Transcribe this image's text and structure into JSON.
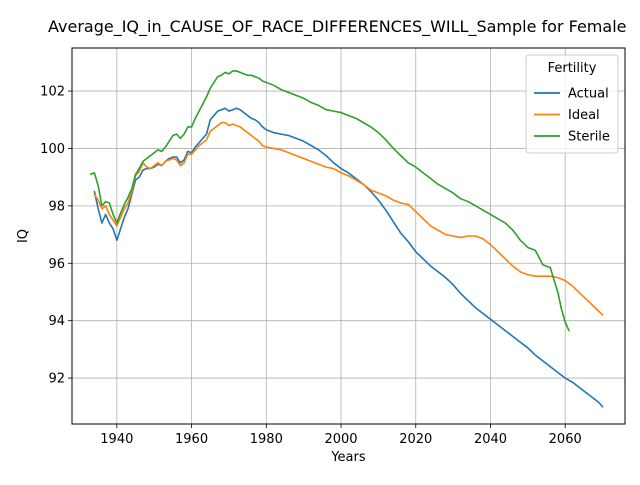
{
  "chart_data": {
    "type": "line",
    "title": "Average_IQ_in_CAUSE_OF_RACE_DIFFERENCES_WILL_Sample for Female",
    "xlabel": "Years",
    "ylabel": "IQ",
    "xlim": [
      1928,
      2076
    ],
    "ylim": [
      90.4,
      103.5
    ],
    "xticks": [
      1940,
      1960,
      1980,
      2000,
      2020,
      2040,
      2060
    ],
    "yticks": [
      92,
      94,
      96,
      98,
      100,
      102
    ],
    "grid": true,
    "legend": {
      "title": "Fertility",
      "placement": "top-right"
    },
    "series": [
      {
        "name": "Actual",
        "color": "#1f77b4",
        "points": [
          [
            1934,
            98.5
          ],
          [
            1935,
            97.9
          ],
          [
            1936,
            97.4
          ],
          [
            1937,
            97.7
          ],
          [
            1938,
            97.4
          ],
          [
            1939,
            97.2
          ],
          [
            1940,
            96.8
          ],
          [
            1941,
            97.2
          ],
          [
            1942,
            97.6
          ],
          [
            1943,
            97.9
          ],
          [
            1944,
            98.4
          ],
          [
            1945,
            98.9
          ],
          [
            1946,
            99.0
          ],
          [
            1947,
            99.25
          ],
          [
            1948,
            99.3
          ],
          [
            1949,
            99.3
          ],
          [
            1950,
            99.35
          ],
          [
            1951,
            99.45
          ],
          [
            1952,
            99.4
          ],
          [
            1953,
            99.55
          ],
          [
            1954,
            99.65
          ],
          [
            1955,
            99.7
          ],
          [
            1956,
            99.7
          ],
          [
            1957,
            99.5
          ],
          [
            1958,
            99.6
          ],
          [
            1959,
            99.9
          ],
          [
            1960,
            99.85
          ],
          [
            1961,
            100.05
          ],
          [
            1962,
            100.2
          ],
          [
            1963,
            100.35
          ],
          [
            1964,
            100.5
          ],
          [
            1965,
            101.0
          ],
          [
            1966,
            101.15
          ],
          [
            1967,
            101.3
          ],
          [
            1968,
            101.35
          ],
          [
            1969,
            101.4
          ],
          [
            1970,
            101.3
          ],
          [
            1971,
            101.35
          ],
          [
            1972,
            101.4
          ],
          [
            1973,
            101.35
          ],
          [
            1974,
            101.25
          ],
          [
            1975,
            101.15
          ],
          [
            1976,
            101.05
          ],
          [
            1977,
            101.0
          ],
          [
            1978,
            100.9
          ],
          [
            1979,
            100.75
          ],
          [
            1980,
            100.65
          ],
          [
            1982,
            100.55
          ],
          [
            1984,
            100.5
          ],
          [
            1986,
            100.45
          ],
          [
            1988,
            100.35
          ],
          [
            1990,
            100.25
          ],
          [
            1992,
            100.1
          ],
          [
            1994,
            99.95
          ],
          [
            1996,
            99.75
          ],
          [
            1998,
            99.5
          ],
          [
            2000,
            99.3
          ],
          [
            2002,
            99.15
          ],
          [
            2004,
            98.95
          ],
          [
            2006,
            98.75
          ],
          [
            2008,
            98.5
          ],
          [
            2010,
            98.2
          ],
          [
            2012,
            97.85
          ],
          [
            2014,
            97.45
          ],
          [
            2016,
            97.05
          ],
          [
            2018,
            96.75
          ],
          [
            2020,
            96.4
          ],
          [
            2022,
            96.15
          ],
          [
            2024,
            95.9
          ],
          [
            2026,
            95.7
          ],
          [
            2028,
            95.5
          ],
          [
            2030,
            95.25
          ],
          [
            2032,
            94.95
          ],
          [
            2034,
            94.7
          ],
          [
            2036,
            94.45
          ],
          [
            2038,
            94.25
          ],
          [
            2040,
            94.05
          ],
          [
            2042,
            93.85
          ],
          [
            2044,
            93.65
          ],
          [
            2046,
            93.45
          ],
          [
            2048,
            93.25
          ],
          [
            2050,
            93.05
          ],
          [
            2052,
            92.8
          ],
          [
            2054,
            92.6
          ],
          [
            2056,
            92.4
          ],
          [
            2058,
            92.2
          ],
          [
            2060,
            92.0
          ],
          [
            2062,
            91.85
          ],
          [
            2064,
            91.65
          ],
          [
            2066,
            91.45
          ],
          [
            2068,
            91.25
          ],
          [
            2069,
            91.15
          ],
          [
            2070,
            91.0
          ]
        ]
      },
      {
        "name": "Ideal",
        "color": "#ff7f0e",
        "points": [
          [
            1934,
            98.4
          ],
          [
            1935,
            98.2
          ],
          [
            1936,
            97.9
          ],
          [
            1937,
            98.0
          ],
          [
            1938,
            97.7
          ],
          [
            1939,
            97.5
          ],
          [
            1940,
            97.3
          ],
          [
            1941,
            97.6
          ],
          [
            1942,
            97.9
          ],
          [
            1943,
            98.1
          ],
          [
            1944,
            98.5
          ],
          [
            1945,
            99.05
          ],
          [
            1946,
            99.2
          ],
          [
            1947,
            99.5
          ],
          [
            1948,
            99.35
          ],
          [
            1949,
            99.3
          ],
          [
            1950,
            99.4
          ],
          [
            1951,
            99.5
          ],
          [
            1952,
            99.4
          ],
          [
            1953,
            99.55
          ],
          [
            1954,
            99.6
          ],
          [
            1955,
            99.65
          ],
          [
            1956,
            99.6
          ],
          [
            1957,
            99.4
          ],
          [
            1958,
            99.5
          ],
          [
            1959,
            99.8
          ],
          [
            1960,
            99.8
          ],
          [
            1961,
            99.95
          ],
          [
            1962,
            100.1
          ],
          [
            1963,
            100.2
          ],
          [
            1964,
            100.3
          ],
          [
            1965,
            100.6
          ],
          [
            1966,
            100.7
          ],
          [
            1967,
            100.8
          ],
          [
            1968,
            100.9
          ],
          [
            1969,
            100.9
          ],
          [
            1970,
            100.8
          ],
          [
            1971,
            100.85
          ],
          [
            1972,
            100.8
          ],
          [
            1973,
            100.75
          ],
          [
            1974,
            100.65
          ],
          [
            1975,
            100.55
          ],
          [
            1976,
            100.45
          ],
          [
            1977,
            100.35
          ],
          [
            1978,
            100.25
          ],
          [
            1979,
            100.1
          ],
          [
            1980,
            100.05
          ],
          [
            1982,
            100.0
          ],
          [
            1984,
            99.95
          ],
          [
            1986,
            99.85
          ],
          [
            1988,
            99.75
          ],
          [
            1990,
            99.65
          ],
          [
            1992,
            99.55
          ],
          [
            1994,
            99.45
          ],
          [
            1996,
            99.35
          ],
          [
            1998,
            99.3
          ],
          [
            2000,
            99.15
          ],
          [
            2002,
            99.05
          ],
          [
            2004,
            98.9
          ],
          [
            2006,
            98.75
          ],
          [
            2008,
            98.55
          ],
          [
            2010,
            98.45
          ],
          [
            2012,
            98.35
          ],
          [
            2014,
            98.2
          ],
          [
            2016,
            98.1
          ],
          [
            2018,
            98.05
          ],
          [
            2020,
            97.8
          ],
          [
            2022,
            97.55
          ],
          [
            2024,
            97.3
          ],
          [
            2026,
            97.15
          ],
          [
            2028,
            97.0
          ],
          [
            2030,
            96.95
          ],
          [
            2032,
            96.9
          ],
          [
            2034,
            96.95
          ],
          [
            2036,
            96.95
          ],
          [
            2038,
            96.85
          ],
          [
            2040,
            96.65
          ],
          [
            2042,
            96.4
          ],
          [
            2044,
            96.15
          ],
          [
            2046,
            95.9
          ],
          [
            2048,
            95.7
          ],
          [
            2050,
            95.6
          ],
          [
            2052,
            95.55
          ],
          [
            2054,
            95.55
          ],
          [
            2056,
            95.55
          ],
          [
            2058,
            95.5
          ],
          [
            2060,
            95.4
          ],
          [
            2062,
            95.2
          ],
          [
            2064,
            94.95
          ],
          [
            2066,
            94.7
          ],
          [
            2068,
            94.45
          ],
          [
            2070,
            94.2
          ]
        ]
      },
      {
        "name": "Sterile",
        "color": "#2ca02c",
        "points": [
          [
            1933,
            99.1
          ],
          [
            1934,
            99.15
          ],
          [
            1935,
            98.7
          ],
          [
            1936,
            98.0
          ],
          [
            1937,
            98.15
          ],
          [
            1938,
            98.1
          ],
          [
            1939,
            97.7
          ],
          [
            1940,
            97.4
          ],
          [
            1941,
            97.75
          ],
          [
            1942,
            98.05
          ],
          [
            1943,
            98.3
          ],
          [
            1944,
            98.6
          ],
          [
            1945,
            99.1
          ],
          [
            1946,
            99.3
          ],
          [
            1947,
            99.55
          ],
          [
            1948,
            99.65
          ],
          [
            1949,
            99.75
          ],
          [
            1950,
            99.85
          ],
          [
            1951,
            99.95
          ],
          [
            1952,
            99.9
          ],
          [
            1953,
            100.05
          ],
          [
            1954,
            100.25
          ],
          [
            1955,
            100.45
          ],
          [
            1956,
            100.5
          ],
          [
            1957,
            100.35
          ],
          [
            1958,
            100.5
          ],
          [
            1959,
            100.75
          ],
          [
            1960,
            100.75
          ],
          [
            1961,
            101.05
          ],
          [
            1962,
            101.3
          ],
          [
            1963,
            101.55
          ],
          [
            1964,
            101.8
          ],
          [
            1965,
            102.1
          ],
          [
            1966,
            102.3
          ],
          [
            1967,
            102.5
          ],
          [
            1968,
            102.55
          ],
          [
            1969,
            102.65
          ],
          [
            1970,
            102.6
          ],
          [
            1971,
            102.7
          ],
          [
            1972,
            102.7
          ],
          [
            1973,
            102.65
          ],
          [
            1974,
            102.6
          ],
          [
            1975,
            102.55
          ],
          [
            1976,
            102.55
          ],
          [
            1977,
            102.5
          ],
          [
            1978,
            102.45
          ],
          [
            1979,
            102.35
          ],
          [
            1980,
            102.3
          ],
          [
            1982,
            102.2
          ],
          [
            1984,
            102.05
          ],
          [
            1986,
            101.95
          ],
          [
            1988,
            101.85
          ],
          [
            1990,
            101.75
          ],
          [
            1992,
            101.6
          ],
          [
            1994,
            101.5
          ],
          [
            1996,
            101.35
          ],
          [
            1998,
            101.3
          ],
          [
            2000,
            101.25
          ],
          [
            2002,
            101.15
          ],
          [
            2004,
            101.05
          ],
          [
            2006,
            100.9
          ],
          [
            2008,
            100.75
          ],
          [
            2010,
            100.55
          ],
          [
            2012,
            100.3
          ],
          [
            2014,
            100.0
          ],
          [
            2016,
            99.75
          ],
          [
            2018,
            99.5
          ],
          [
            2020,
            99.35
          ],
          [
            2022,
            99.15
          ],
          [
            2024,
            98.95
          ],
          [
            2026,
            98.75
          ],
          [
            2028,
            98.6
          ],
          [
            2030,
            98.45
          ],
          [
            2032,
            98.25
          ],
          [
            2034,
            98.15
          ],
          [
            2036,
            98.0
          ],
          [
            2038,
            97.85
          ],
          [
            2040,
            97.7
          ],
          [
            2042,
            97.55
          ],
          [
            2044,
            97.4
          ],
          [
            2046,
            97.15
          ],
          [
            2048,
            96.8
          ],
          [
            2050,
            96.55
          ],
          [
            2052,
            96.45
          ],
          [
            2054,
            95.95
          ],
          [
            2056,
            95.85
          ],
          [
            2058,
            95.0
          ],
          [
            2059,
            94.4
          ],
          [
            2060,
            93.95
          ],
          [
            2061,
            93.65
          ]
        ]
      }
    ]
  }
}
